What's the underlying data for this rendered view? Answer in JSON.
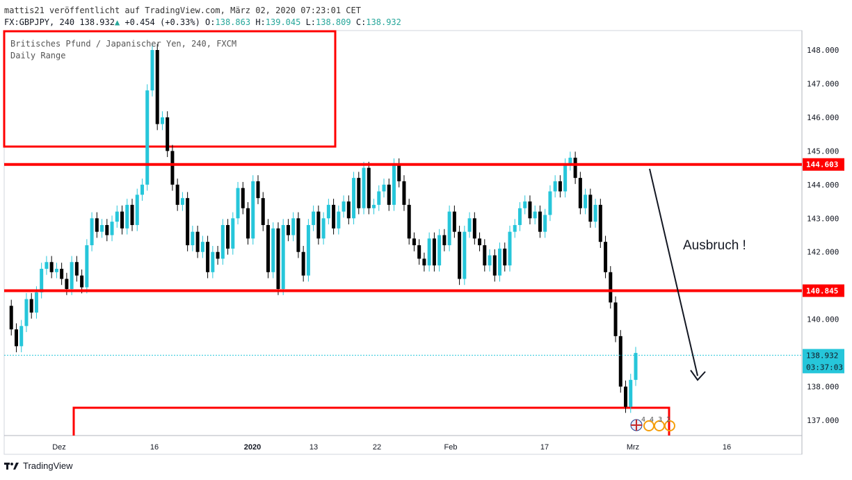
{
  "header": {
    "line1": "mattis21 veröffentlicht auf TradingView.com, März 02, 2020 07:23:01 CET",
    "symbol": "FX:GBPJPY, 240",
    "last": "138.932",
    "change": "+0.454 (+0.33%)",
    "o_label": "O:",
    "o_value": "138.863",
    "h_label": "H:",
    "h_value": "139.045",
    "l_label": "L:",
    "l_value": "138.809",
    "c_label": "C:",
    "c_value": "138.932"
  },
  "legend": {
    "line1": "Britisches Pfund / Japanischer Yen, 240, FXCM",
    "line2": "Daily Range"
  },
  "annotation": {
    "text": "Ausbruch !"
  },
  "footer": {
    "brand": "TradingView"
  },
  "badges": {
    "events": "4 4 3 2"
  },
  "colors": {
    "up": "#26c6da",
    "down": "#000000",
    "level": "#ff0000",
    "price_line": "#26c6da",
    "tag_level": "#ff0000"
  },
  "chart_data": {
    "type": "candlestick",
    "symbol": "FX:GBPJPY",
    "timeframe": "240",
    "ylim": [
      136.5,
      148.5
    ],
    "y_ticks": [
      137.0,
      138.0,
      139.0,
      140.0,
      141.0,
      142.0,
      143.0,
      144.0,
      145.0,
      146.0,
      147.0,
      148.0
    ],
    "y_tick_labels": [
      "137.000",
      "138.000",
      "",
      "140.000",
      "",
      "142.000",
      "143.000",
      "144.000",
      "145.000",
      "146.000",
      "147.000",
      "148.000"
    ],
    "x_tick_labels": [
      "Dez",
      "16",
      "2020",
      "13",
      "22",
      "Feb",
      "17",
      "Mrz",
      "16"
    ],
    "levels": [
      {
        "label": "144.603",
        "value": 144.6
      },
      {
        "label": "140.845",
        "value": 140.85
      }
    ],
    "current_price": {
      "label": "138.932",
      "value": 138.932,
      "countdown": "03:37:03"
    },
    "series": [
      {
        "price": [
          140.4,
          139.7,
          139.2,
          139.8,
          140.6,
          140.2,
          140.8,
          141.5,
          141.7,
          141.4,
          141.5,
          141.2,
          140.9,
          141.7,
          141.3,
          140.95,
          142.2,
          143.0,
          142.6,
          142.8,
          142.5,
          142.9,
          143.2,
          142.7,
          143.4,
          142.8,
          143.7,
          144.0,
          146.8,
          148.0,
          145.8,
          146.0,
          145.0,
          144.0,
          143.4,
          143.6,
          142.2,
          142.6,
          142.0,
          142.3,
          141.4,
          142.0,
          141.8,
          142.8,
          142.1,
          143.0,
          143.9,
          143.3,
          142.4,
          144.1,
          143.6,
          142.8,
          141.4,
          142.7,
          140.9,
          142.8,
          142.5,
          143.0,
          142.0,
          141.3,
          142.8,
          143.2,
          142.4,
          143.0,
          143.4,
          142.7,
          143.2,
          143.5,
          143.0,
          144.2,
          143.3,
          144.5,
          143.3,
          143.4,
          143.8,
          144.0,
          143.4,
          144.6,
          144.1,
          143.4,
          142.4,
          142.2,
          141.8,
          141.6,
          142.4,
          141.6,
          142.5,
          142.2,
          143.2,
          142.6,
          141.2,
          142.6,
          143.0,
          142.4,
          142.2,
          141.6,
          141.9,
          141.3,
          142.1,
          141.6,
          142.6,
          142.8,
          143.3,
          143.5,
          143.0,
          143.2,
          142.6,
          143.1,
          143.8,
          144.1,
          143.8,
          144.6,
          144.8,
          144.2,
          143.3,
          143.7,
          142.9,
          143.4,
          142.3,
          141.4,
          140.5,
          139.5,
          138.0,
          137.4,
          138.2,
          139.0
        ]
      }
    ]
  }
}
